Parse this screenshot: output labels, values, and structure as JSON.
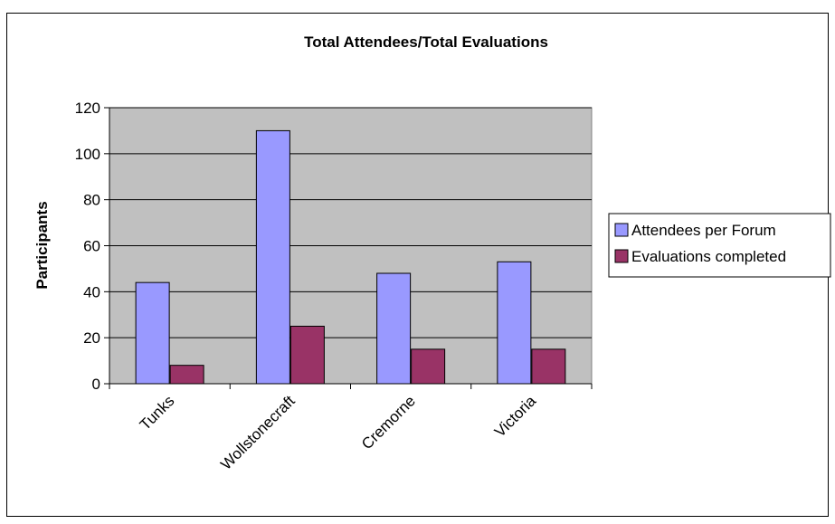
{
  "chart_data": {
    "type": "bar",
    "title": "Total Attendees/Total Evaluations",
    "xlabel": "",
    "ylabel": "Participants",
    "categories": [
      "Tunks",
      "Wollstonecraft",
      "Cremorne",
      "Victoria"
    ],
    "series": [
      {
        "name": "Attendees per Forum",
        "values": [
          44,
          110,
          48,
          53
        ],
        "color": "#9999ff"
      },
      {
        "name": "Evaluations completed",
        "values": [
          8,
          25,
          15,
          15
        ],
        "color": "#993366"
      }
    ],
    "ylim": [
      0,
      120
    ],
    "yticks": [
      0,
      20,
      40,
      60,
      80,
      100,
      120
    ],
    "grid": true,
    "plot_background": "#c0c0c0",
    "legend_position": "right"
  }
}
